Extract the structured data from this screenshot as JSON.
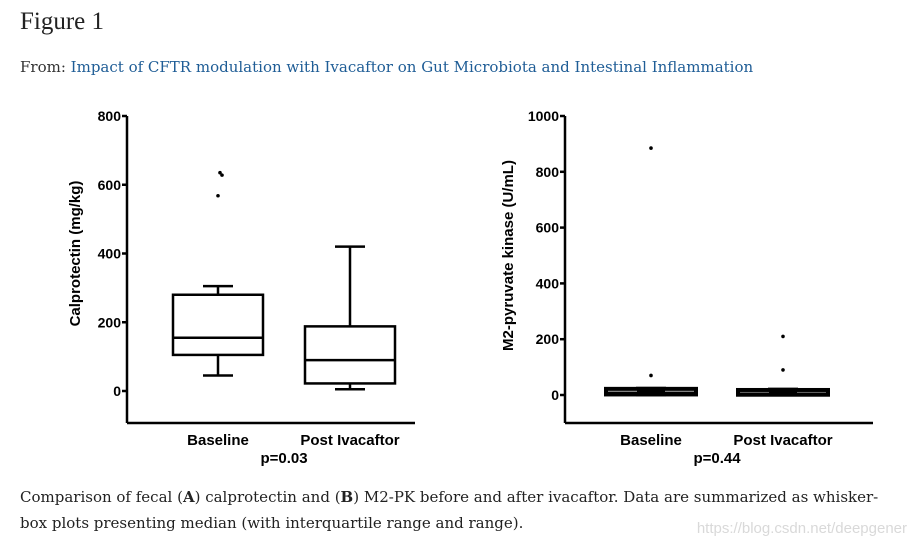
{
  "figure": {
    "title": "Figure 1",
    "from_label": "From:",
    "from_link": "Impact of CFTR modulation with Ivacaftor on Gut Microbiota and Intestinal Inflammation"
  },
  "chart_data": [
    {
      "type": "box",
      "panel": "A",
      "ylabel": "Calprotectin (mg/kg)",
      "ylim": [
        0,
        800
      ],
      "yticks": [
        0,
        200,
        400,
        600,
        800
      ],
      "categories": [
        "Baseline",
        "Post Ivacaftor"
      ],
      "boxes": [
        {
          "name": "Baseline",
          "min": 45,
          "q1": 105,
          "median": 155,
          "q3": 280,
          "max": 305,
          "outliers": [
            635,
            628,
            568
          ]
        },
        {
          "name": "Post Ivacaftor",
          "min": 5,
          "q1": 22,
          "median": 90,
          "q3": 188,
          "max": 420,
          "outliers": []
        }
      ],
      "pvalue": "p=0.03"
    },
    {
      "type": "box",
      "panel": "B",
      "ylabel": "M2-pyruvate kinase (U/mL)",
      "ylim": [
        0,
        1000
      ],
      "yticks": [
        0,
        200,
        400,
        600,
        800,
        1000
      ],
      "categories": [
        "Baseline",
        "Post Ivacaftor"
      ],
      "boxes": [
        {
          "name": "Baseline",
          "min": 0,
          "q1": 2,
          "median": 8,
          "q3": 22,
          "max": 25,
          "outliers": [
            885,
            70
          ]
        },
        {
          "name": "Post Ivacaftor",
          "min": 0,
          "q1": 1,
          "median": 5,
          "q3": 18,
          "max": 22,
          "outliers": [
            210,
            90
          ]
        }
      ],
      "pvalue": "p=0.44"
    }
  ],
  "caption": {
    "p1": "Comparison of fecal (",
    "a": "A",
    "p2": ") calprotectin and (",
    "b": "B",
    "p3": ") M2-PK before and after ivacaftor. Data are summarized as whisker-box plots presenting median (with interquartile range and range)."
  },
  "watermark": "https://blog.csdn.net/deepgener"
}
